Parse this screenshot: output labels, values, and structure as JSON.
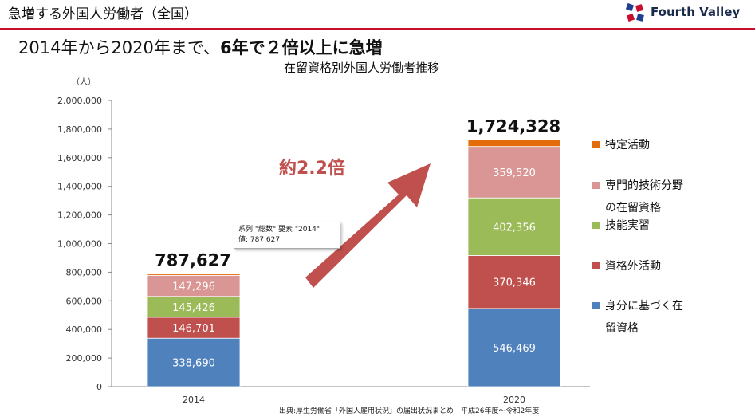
{
  "header": {
    "title": "急増する外国人労働者（全国）",
    "brand": "Fourth Valley"
  },
  "headline": {
    "part1": "2014年から2020年まで、",
    "part2": "6年で２倍以上に急増"
  },
  "callout": "約2.2倍",
  "tooltip": {
    "line1": "系列 \"総数\" 要素 \"2014\"",
    "line2": "値: 787,627"
  },
  "source": "出典:厚生労働省「外国人雇用状況」の届出状況まとめ　平成26年度～令和2年度",
  "colors": {
    "accent": "#c8102e",
    "arrow": "#c0504d"
  },
  "chart_data": {
    "type": "bar",
    "stacked": true,
    "title": "在留資格別外国人労働者推移",
    "ylabel": "（人）",
    "xlabel": "",
    "ylim": [
      0,
      2000000
    ],
    "yticks": [
      "0",
      "200,000",
      "400,000",
      "600,000",
      "800,000",
      "1,000,000",
      "1,200,000",
      "1,400,000",
      "1,600,000",
      "1,800,000",
      "2,000,000"
    ],
    "categories": [
      "2014",
      "2020"
    ],
    "totals": [
      787627,
      1724328
    ],
    "total_labels": [
      "787,627",
      "1,724,328"
    ],
    "series": [
      {
        "name": "身分に基づく在留資格",
        "color": "#4f81bd",
        "values": [
          338690,
          546469
        ],
        "labels": [
          "338,690",
          "546,469"
        ]
      },
      {
        "name": "資格外活動",
        "color": "#c0504d",
        "values": [
          146701,
          370346
        ],
        "labels": [
          "146,701",
          "370,346"
        ]
      },
      {
        "name": "技能実習",
        "color": "#9bbb59",
        "values": [
          145426,
          402356
        ],
        "labels": [
          "145,426",
          "402,356"
        ]
      },
      {
        "name": "専門的技術分野の在留資格",
        "color": "#d99694",
        "values": [
          147296,
          359520
        ],
        "labels": [
          "147,296",
          "359,520"
        ]
      },
      {
        "name": "特定活動",
        "color": "#e46c0a",
        "values": [
          9514,
          45637
        ],
        "labels": [
          "",
          ""
        ]
      }
    ],
    "legend": [
      {
        "lines": [
          "特定活動"
        ],
        "color": "#e46c0a"
      },
      {
        "lines": [
          "専門的技術分野",
          "の在留資格"
        ],
        "color": "#d99694"
      },
      {
        "lines": [
          "技能実習"
        ],
        "color": "#9bbb59"
      },
      {
        "lines": [
          "資格外活動"
        ],
        "color": "#c0504d"
      },
      {
        "lines": [
          "身分に基づく在",
          "留資格"
        ],
        "color": "#4f81bd"
      }
    ],
    "grid": false,
    "legend_position": "right"
  }
}
